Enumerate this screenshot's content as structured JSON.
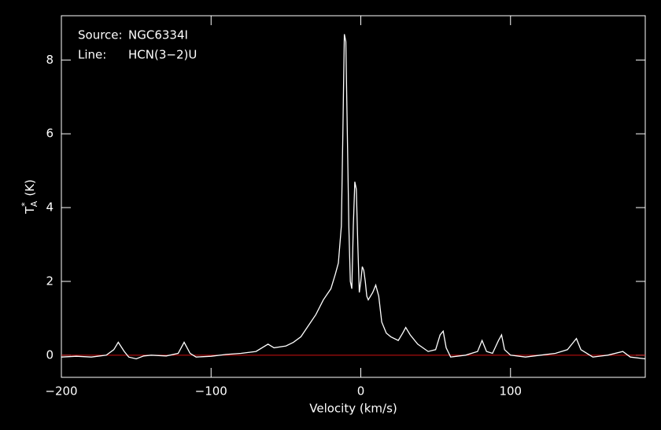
{
  "chart_data": {
    "type": "line",
    "annotations": [
      {
        "key": "Source:",
        "text": "NGC6334I"
      },
      {
        "key": "Line:",
        "text": "HCN(3−2)U"
      }
    ],
    "xlabel": "Velocity (km/s)",
    "ylabel": {
      "main": "T",
      "sup": "*",
      "sub": "A",
      "unit": "(K)"
    },
    "xlim": [
      -200,
      190
    ],
    "ylim": [
      -0.6,
      9.2
    ],
    "xticks": [
      {
        "value": -200,
        "label": "−200"
      },
      {
        "value": -100,
        "label": "−100"
      },
      0,
      100
    ],
    "yticks": [
      0,
      2,
      4,
      6,
      8
    ],
    "baseline": {
      "value": 0,
      "color": "#d01010"
    },
    "series": [
      {
        "color": "#ffffff",
        "x": [
          -200,
          -190,
          -180,
          -170,
          -165,
          -162,
          -158,
          -155,
          -150,
          -145,
          -140,
          -130,
          -122,
          -118,
          -114,
          -110,
          -100,
          -90,
          -80,
          -70,
          -62,
          -58,
          -50,
          -45,
          -40,
          -35,
          -30,
          -25,
          -20,
          -17,
          -15,
          -13,
          -12,
          -11,
          -10,
          -9,
          -8,
          -7,
          -6,
          -5,
          -4,
          -3,
          -2,
          -1,
          0,
          1,
          2,
          3,
          4,
          5,
          8,
          10,
          12,
          14,
          17,
          20,
          25,
          28,
          30,
          33,
          38,
          45,
          50,
          53,
          55,
          57,
          60,
          70,
          78,
          81,
          84,
          88,
          92,
          94,
          96,
          100,
          110,
          120,
          130,
          138,
          142,
          144,
          147,
          155,
          165,
          175,
          180,
          190
        ],
        "values": [
          -0.05,
          -0.03,
          -0.05,
          0.0,
          0.15,
          0.35,
          0.1,
          -0.05,
          -0.1,
          -0.02,
          0.0,
          -0.02,
          0.05,
          0.35,
          0.05,
          -0.05,
          -0.03,
          0.02,
          0.05,
          0.1,
          0.3,
          0.2,
          0.25,
          0.35,
          0.5,
          0.8,
          1.1,
          1.5,
          1.8,
          2.2,
          2.5,
          3.5,
          6.0,
          8.7,
          8.5,
          6.0,
          3.5,
          2.0,
          1.8,
          3.5,
          4.7,
          4.5,
          3.0,
          1.7,
          2.0,
          2.4,
          2.3,
          2.0,
          1.6,
          1.5,
          1.7,
          1.9,
          1.6,
          0.9,
          0.6,
          0.5,
          0.4,
          0.6,
          0.75,
          0.55,
          0.3,
          0.1,
          0.15,
          0.55,
          0.65,
          0.2,
          -0.05,
          0.0,
          0.1,
          0.4,
          0.1,
          0.05,
          0.4,
          0.55,
          0.15,
          0.0,
          -0.05,
          0.0,
          0.05,
          0.15,
          0.35,
          0.45,
          0.15,
          -0.05,
          0.0,
          0.1,
          -0.05,
          -0.1
        ]
      }
    ]
  }
}
